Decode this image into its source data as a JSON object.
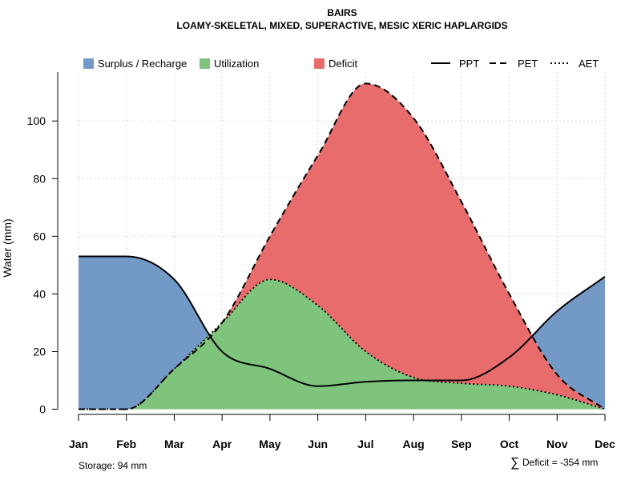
{
  "chart_data": {
    "type": "area",
    "title": "BAIRS",
    "subtitle": "LOAMY-SKELETAL, MIXED, SUPERACTIVE, MESIC XERIC HAPLARGIDS",
    "xlabel": "",
    "ylabel": "Water (mm)",
    "ylim": [
      0,
      117
    ],
    "yticks": [
      0,
      20,
      40,
      60,
      80,
      100
    ],
    "grid": true,
    "legend_position": "top",
    "categories": [
      "Jan",
      "Feb",
      "Mar",
      "Apr",
      "May",
      "Jun",
      "Jul",
      "Aug",
      "Sep",
      "Oct",
      "Nov",
      "Dec"
    ],
    "series": [
      {
        "name": "PPT",
        "style": "solid",
        "values": [
          53,
          53,
          45,
          20,
          14,
          8,
          9.5,
          10,
          10,
          18,
          34,
          46
        ]
      },
      {
        "name": "PET",
        "style": "dashed",
        "values": [
          0,
          0,
          14,
          30,
          60,
          88,
          113,
          101,
          72,
          40,
          12,
          0
        ]
      },
      {
        "name": "AET",
        "style": "dotted",
        "values": [
          0,
          0,
          14,
          30,
          45,
          36,
          20,
          11,
          9,
          8,
          5,
          0
        ]
      }
    ],
    "fills": [
      {
        "name": "Surplus / Recharge",
        "color": "#7399c6",
        "between": [
          "PET",
          "PPT"
        ],
        "where": "PPT above PET"
      },
      {
        "name": "Utilization",
        "color": "#7fc47d",
        "between": [
          "baseline",
          "AET"
        ]
      },
      {
        "name": "Deficit",
        "color": "#e86c6c",
        "between": [
          "AET",
          "PET"
        ]
      }
    ],
    "legend": [
      {
        "label": "Surplus / Recharge",
        "kind": "swatch",
        "color": "#7399c6"
      },
      {
        "label": "Utilization",
        "kind": "swatch",
        "color": "#7fc47d"
      },
      {
        "label": "Deficit",
        "kind": "swatch",
        "color": "#e86c6c"
      },
      {
        "label": "PPT",
        "kind": "line",
        "style": "solid"
      },
      {
        "label": "PET",
        "kind": "line",
        "style": "dashed"
      },
      {
        "label": "AET",
        "kind": "line",
        "style": "dotted"
      }
    ],
    "annotations": {
      "storage": "Storage: 94 mm",
      "deficit_symbol": "∑",
      "deficit": "Deficit = -354 mm"
    }
  }
}
